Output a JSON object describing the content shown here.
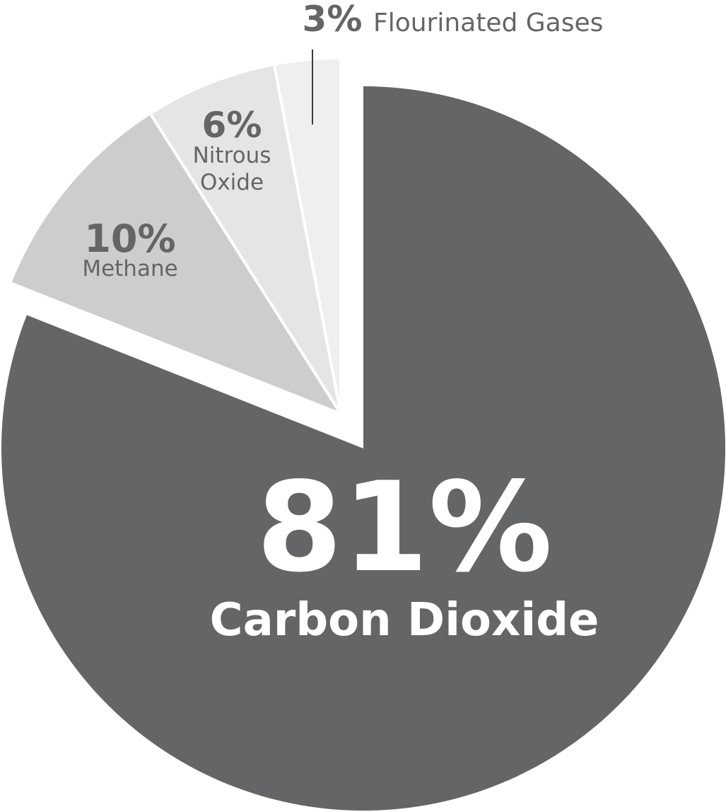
{
  "chart_data": {
    "type": "pie",
    "slices": [
      {
        "name": "Carbon Dioxide",
        "pct_label": "81%",
        "name_lines": [
          "Carbon Dioxide"
        ],
        "value": 81,
        "color": "#646567",
        "text_color": "#ffffff",
        "exploded": true
      },
      {
        "name": "Methane",
        "pct_label": "10%",
        "name_lines": [
          "Methane"
        ],
        "value": 10,
        "color": "#cdcdcd",
        "text_color": "#646567",
        "exploded": false
      },
      {
        "name": "Nitrous Oxide",
        "pct_label": "6%",
        "name_lines": [
          "Nitrous",
          "Oxide"
        ],
        "value": 6,
        "color": "#e5e5e5",
        "text_color": "#646567",
        "exploded": false
      },
      {
        "name": "Flourinated Gases",
        "pct_label": "3%",
        "name_lines": [
          "Flourinated Gases"
        ],
        "value": 3,
        "color": "#efefef",
        "text_color": "#646567",
        "exploded": false
      }
    ]
  }
}
